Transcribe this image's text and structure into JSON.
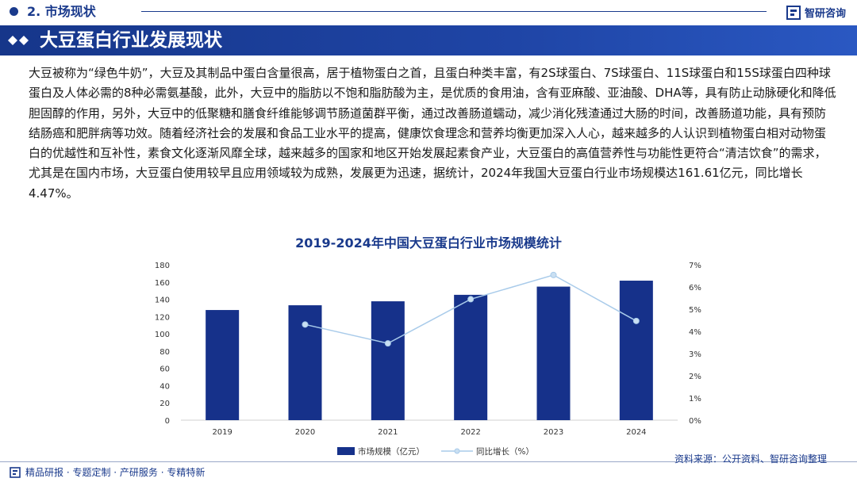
{
  "header": {
    "section_label": "2. 市场现状",
    "brand_name": "智研咨询"
  },
  "banner": {
    "title": "大豆蛋白行业发展现状"
  },
  "body": {
    "paragraph": "大豆被称为“绿色牛奶”，大豆及其制品中蛋白含量很高，居于植物蛋白之首，且蛋白种类丰富，有2S球蛋白、7S球蛋白、11S球蛋白和15S球蛋白四种球蛋白及人体必需的8种必需氨基酸，此外，大豆中的脂肪以不饱和脂肪酸为主，是优质的食用油，含有亚麻酸、亚油酸、DHA等，具有防止动脉硬化和降低胆固醇的作用，另外，大豆中的低聚糖和膳食纤维能够调节肠道菌群平衡，通过改善肠道蠕动，减少消化残渣通过大肠的时间，改善肠道功能，具有预防结肠癌和肥胖病等功效。随着经济社会的发展和食品工业水平的提高，健康饮食理念和营养均衡更加深入人心，越来越多的人认识到植物蛋白相对动物蛋白的优越性和互补性，素食文化逐渐风靡全球，越来越多的国家和地区开始发展起素食产业，大豆蛋白的高值营养性与功能性更符合“清洁饮食”的需求，尤其是在国内市场，大豆蛋白使用较早且应用领域较为成熟，发展更为迅速，据统计，2024年我国大豆蛋白行业市场规模达161.61亿元，同比增长4.47%。"
  },
  "chart_data": {
    "type": "bar+line",
    "title": "2019-2024年中国大豆蛋白行业市场规模统计",
    "categories": [
      "2019",
      "2020",
      "2021",
      "2022",
      "2023",
      "2024"
    ],
    "series": [
      {
        "name": "市场规模（亿元）",
        "type": "bar",
        "axis": "left",
        "values": [
          127.6,
          133.1,
          137.7,
          145.2,
          154.7,
          161.61
        ]
      },
      {
        "name": "同比增长（%）",
        "type": "line",
        "axis": "right",
        "values": [
          null,
          4.31,
          3.46,
          5.45,
          6.54,
          4.47
        ]
      }
    ],
    "y_left": {
      "ylim": [
        0,
        180
      ],
      "ticks": [
        "0",
        "20",
        "40",
        "60",
        "80",
        "100",
        "120",
        "140",
        "160",
        "180"
      ]
    },
    "y_right": {
      "ylim": [
        0,
        7
      ],
      "ticks": [
        "0%",
        "1%",
        "2%",
        "3%",
        "4%",
        "5%",
        "6%",
        "7%"
      ]
    },
    "legend_position": "bottom-center",
    "colors": {
      "bar": "#16318a",
      "line": "#a9cbea",
      "marker": "#c9dff2"
    }
  },
  "footer": {
    "tagline": "精品研报 · 专题定制 · 产研服务 · 专精特新",
    "source": "资料来源：公开资料、智研咨询整理"
  }
}
